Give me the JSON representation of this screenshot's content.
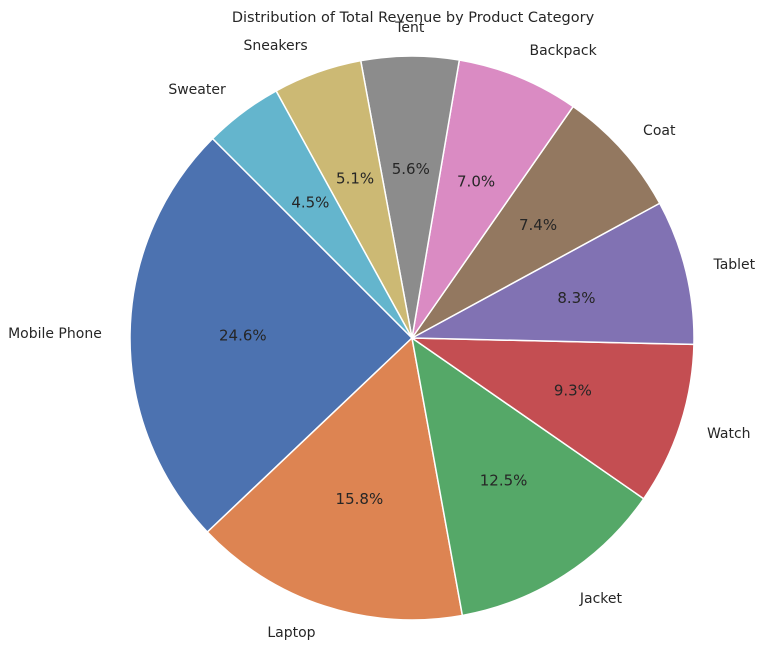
{
  "chart_data": {
    "type": "pie",
    "title": "Distribution of Total Revenue by Product Category",
    "slices": [
      {
        "label": "Mobile Phone",
        "value": 24.6,
        "pct_label": "24.6%",
        "color": "#4c72b0"
      },
      {
        "label": "Laptop",
        "value": 15.8,
        "pct_label": "15.8%",
        "color": "#dd8452"
      },
      {
        "label": "Jacket",
        "value": 12.5,
        "pct_label": "12.5%",
        "color": "#55a868"
      },
      {
        "label": "Watch",
        "value": 9.3,
        "pct_label": "9.3%",
        "color": "#c44e52"
      },
      {
        "label": "Tablet",
        "value": 8.3,
        "pct_label": "8.3%",
        "color": "#8172b3"
      },
      {
        "label": "Coat",
        "value": 7.4,
        "pct_label": "7.4%",
        "color": "#937860"
      },
      {
        "label": "Backpack",
        "value": 7.0,
        "pct_label": "7.0%",
        "color": "#da8bc3"
      },
      {
        "label": "Tent",
        "value": 5.6,
        "pct_label": "5.6%",
        "color": "#8c8c8c"
      },
      {
        "label": "Sneakers",
        "value": 5.1,
        "pct_label": "5.1%",
        "color": "#ccb974"
      },
      {
        "label": "Sweater",
        "value": 4.5,
        "pct_label": "4.5%",
        "color": "#64b5cd"
      }
    ],
    "start_angle_deg": 135,
    "direction": "counterclockwise",
    "legend": "none"
  }
}
